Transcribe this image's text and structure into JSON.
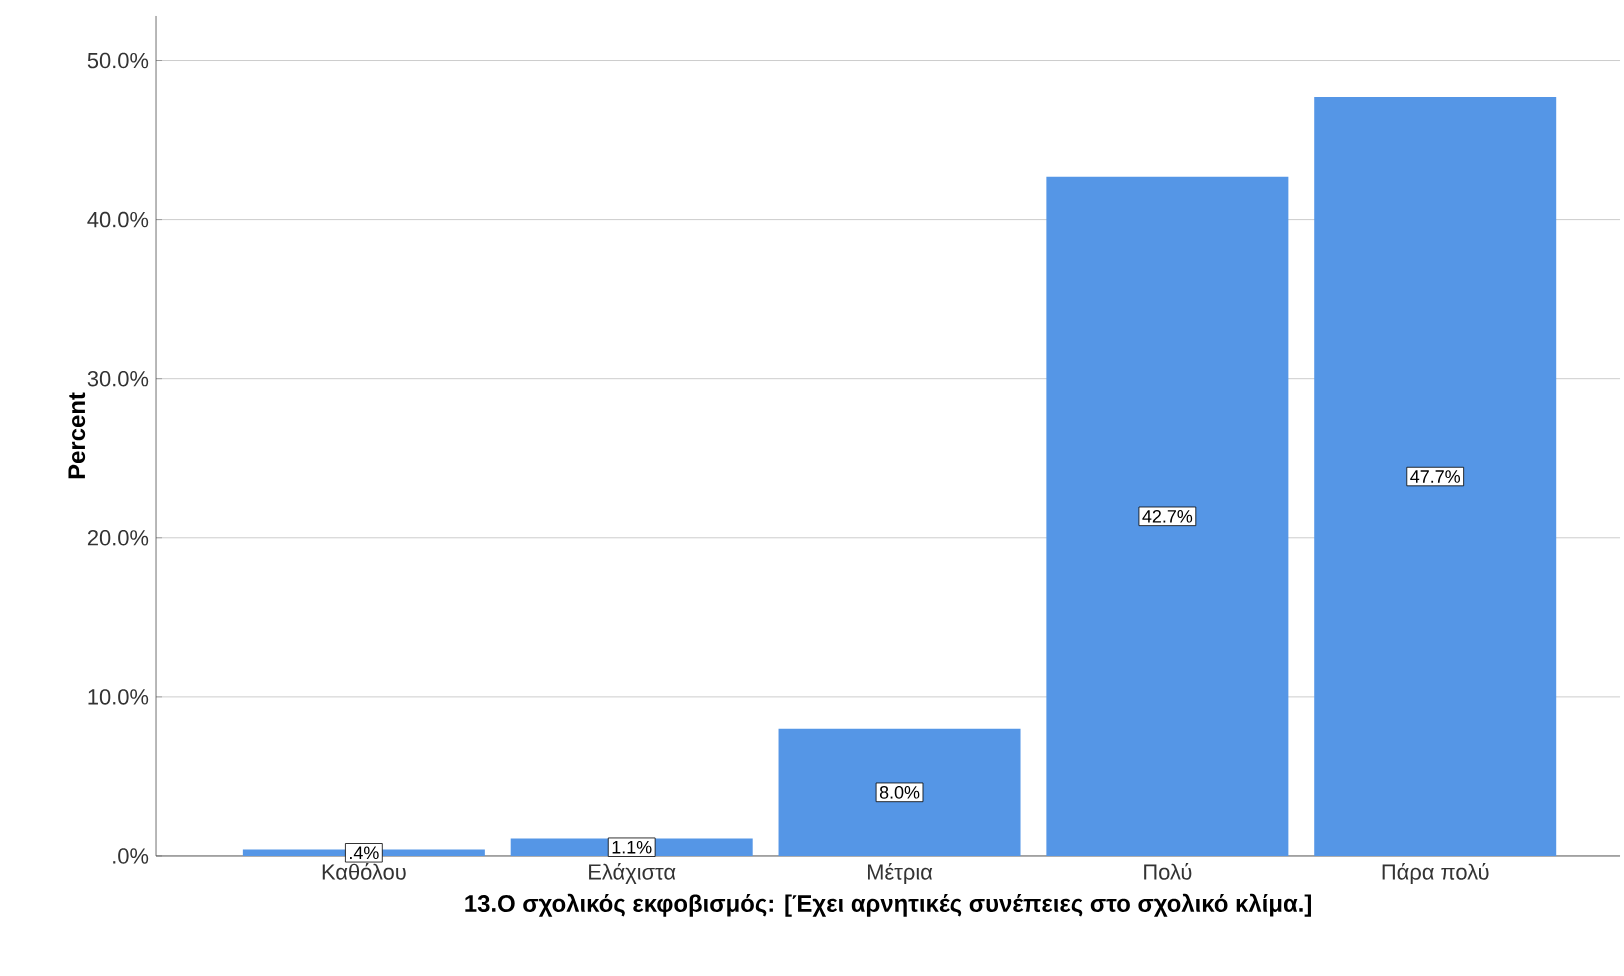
{
  "chart_data": {
    "type": "bar",
    "xlabel": "13.Ο σχολικός εκφοβισμός: [Έχει αρνητικές συνέπειες στο σχολικό κλίμα.]",
    "ylabel": "Percent",
    "categories": [
      "Καθόλου",
      "Ελάχιστα",
      "Μέτρια",
      "Πολύ",
      "Πάρα πολύ"
    ],
    "values": [
      0.4,
      1.1,
      8.0,
      42.7,
      47.7
    ],
    "value_labels": [
      ".4%",
      "1.1%",
      "8.0%",
      "42.7%",
      "47.7%"
    ],
    "color": "#5596e6",
    "ylim": [
      0,
      52.8
    ],
    "yticks": [
      {
        "value": 0,
        "label": ".0%"
      },
      {
        "value": 10,
        "label": "10.0%"
      },
      {
        "value": 20,
        "label": "20.0%"
      },
      {
        "value": 30,
        "label": "30.0%"
      },
      {
        "value": 40,
        "label": "40.0%"
      },
      {
        "value": 50,
        "label": "50.0%"
      }
    ],
    "grid": "y"
  }
}
